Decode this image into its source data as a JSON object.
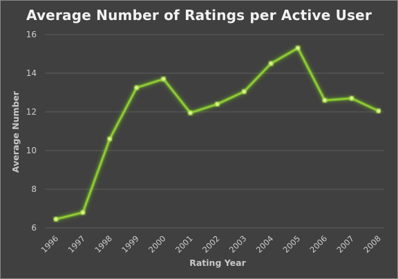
{
  "chart_data": {
    "type": "line",
    "title": "Average Number of Ratings per Active User",
    "xlabel": "Rating Year",
    "ylabel": "Average Number",
    "categories": [
      "1996",
      "1997",
      "1998",
      "1999",
      "2000",
      "2001",
      "2002",
      "2003",
      "2004",
      "2005",
      "2006",
      "2007",
      "2008"
    ],
    "values": [
      6.45,
      6.8,
      10.6,
      13.25,
      13.7,
      11.95,
      12.4,
      13.05,
      14.5,
      15.3,
      12.6,
      12.7,
      12.05
    ],
    "ylim": [
      6,
      16
    ],
    "yticks": [
      6,
      8,
      10,
      12,
      14,
      16
    ],
    "grid": true,
    "legend": "none",
    "colors": {
      "background": "#404040",
      "line": "#9ad13b",
      "glow": "#7ed321",
      "marker": "#d7f08a"
    }
  }
}
